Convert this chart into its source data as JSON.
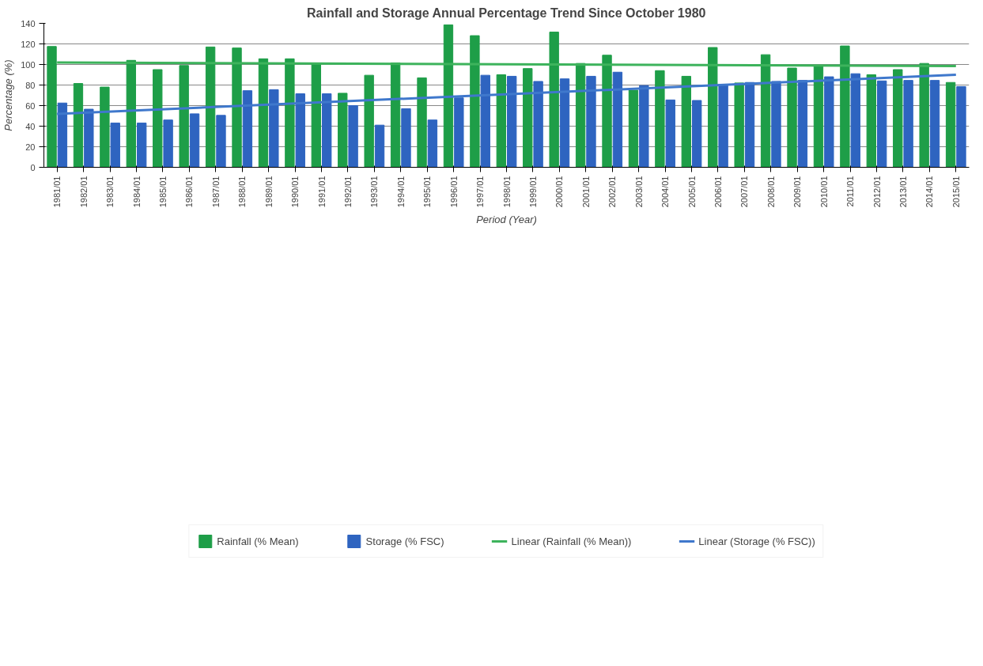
{
  "chart_data": {
    "type": "bar",
    "title": "Rainfall and Storage Annual Percentage Trend Since October 1980",
    "xlabel": "Period (Year)",
    "ylabel": "Percentage (%)",
    "categories": [
      "1981/01",
      "1982/01",
      "1983/01",
      "1984/01",
      "1985/01",
      "1986/01",
      "1987/01",
      "1988/01",
      "1989/01",
      "1990/01",
      "1991/01",
      "1992/01",
      "1993/01",
      "1994/01",
      "1995/01",
      "1996/01",
      "1997/01",
      "1998/01",
      "1999/01",
      "2000/01",
      "2001/01",
      "2002/01",
      "2003/01",
      "2004/01",
      "2005/01",
      "2006/01",
      "2007/01",
      "2008/01",
      "2009/01",
      "2010/01",
      "2011/01",
      "2012/01",
      "2013/01",
      "2014/01",
      "2015/01"
    ],
    "series": [
      {
        "name": "Rainfall (% Mean)",
        "color": "#1e9e48",
        "values": [
          117.5,
          81.5,
          78,
          104,
          95,
          99,
          117,
          116,
          105.5,
          105.5,
          101.5,
          72,
          89.5,
          101.5,
          87,
          138.5,
          128,
          90,
          96,
          131.5,
          101,
          109,
          75,
          94,
          88.5,
          116.5,
          82,
          109.5,
          96.5,
          99,
          118,
          90,
          95,
          101,
          82.5
        ]
      },
      {
        "name": "Storage (% FSC)",
        "color": "#2e64c0",
        "values": [
          62.5,
          56.5,
          43,
          43,
          46,
          52,
          50.5,
          74.5,
          75.5,
          71.5,
          71.5,
          60,
          41,
          57,
          46,
          67.5,
          89.5,
          88.5,
          83.5,
          86,
          88.5,
          92.5,
          79.5,
          65.5,
          65,
          80.5,
          82.5,
          83.5,
          84.5,
          88,
          91,
          84,
          84.5,
          84.5,
          78.5
        ]
      },
      {
        "name": "Linear (Rainfall (% Mean))",
        "type": "line",
        "color": "#3db35c",
        "x": [
          "1981/01",
          "2015/01"
        ],
        "values": [
          102,
          98.5
        ]
      },
      {
        "name": "Linear (Storage (% FSC))",
        "type": "line",
        "color": "#3f78cc",
        "x": [
          "1981/01",
          "2015/01"
        ],
        "values": [
          52,
          90
        ]
      }
    ],
    "ylim": [
      0,
      140
    ],
    "yticks": [
      0,
      20,
      40,
      60,
      80,
      100,
      120,
      140
    ],
    "grid": "y",
    "legend": "bottom",
    "marker": "none",
    "line_style": "solid"
  }
}
